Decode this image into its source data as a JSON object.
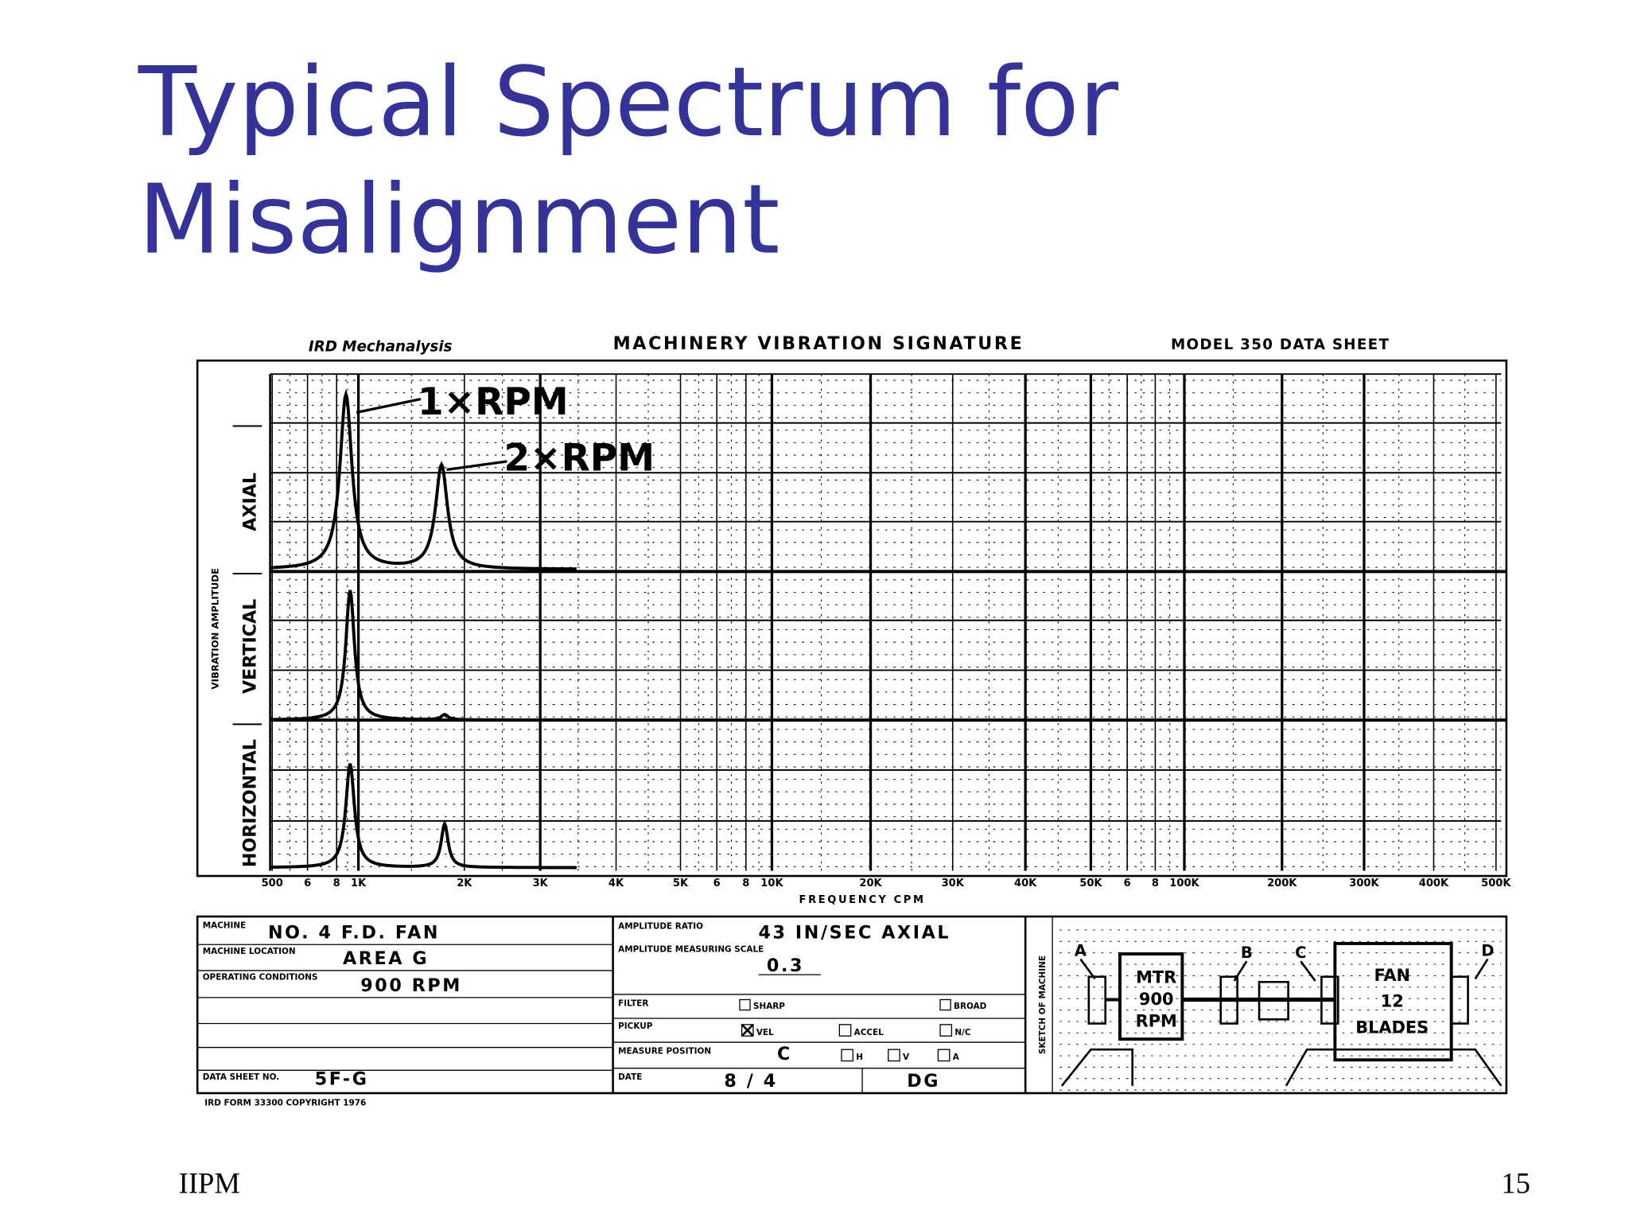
{
  "title": {
    "lines": [
      "Typical Spectrum for",
      "Misalignment"
    ]
  },
  "figure": {
    "header": {
      "brand": "IRD Mechanalysis",
      "title": "MACHINERY VIBRATION SIGNATURE",
      "model": "MODEL 350 DATA SHEET"
    },
    "y_title": "VIBRATION AMPLITUDE",
    "bands": [
      "AXIAL",
      "VERTICAL",
      "HORIZONTAL"
    ],
    "annotations": [
      "1×RPM",
      "2×RPM"
    ],
    "x_labels": [
      "500",
      "6",
      "8",
      "1K",
      "2K",
      "3K",
      "4K",
      "5K",
      "6",
      "8",
      "10K",
      "20K",
      "30K",
      "40K",
      "50K",
      "6",
      "8",
      "100K",
      "200K",
      "300K",
      "400K",
      "500K"
    ],
    "x_title": "FREQUENCY CPM",
    "form_left": [
      {
        "label": "MACHINE",
        "value": "NO. 4 F.D. FAN"
      },
      {
        "label": "MACHINE LOCATION",
        "value": "AREA G"
      },
      {
        "label": "OPERATING CONDITIONS",
        "value": "900 RPM"
      },
      {
        "label": "DATA SHEET NO.",
        "value": "5F-G"
      }
    ],
    "form_mid": {
      "amplitude": {
        "label": "AMPLITUDE RATIO",
        "value": "43 IN/SEC AXIAL"
      },
      "scale": {
        "label": "AMPLITUDE MEASURING SCALE",
        "value": "0.3"
      },
      "filter": {
        "label": "FILTER",
        "options": [
          "SHARP",
          "BROAD"
        ]
      },
      "pickup": {
        "label": "PICKUP",
        "options": [
          "VEL",
          "ACCEL",
          "N/C"
        ]
      },
      "position": {
        "label": "MEASURE POSITION",
        "value": "C",
        "options": [
          "H",
          "V",
          "A"
        ]
      },
      "date": {
        "label": "DATE",
        "value": "8 / 4",
        "signed": "DG"
      }
    },
    "diagram": {
      "side_label": "SKETCH OF MACHINE",
      "points": [
        "A",
        "B",
        "C",
        "D"
      ],
      "motor": [
        "MTR",
        "900",
        "RPM"
      ],
      "fan": [
        "FAN",
        "12",
        "BLADES"
      ]
    },
    "footnote": "IRD FORM 33300 COPYRIGHT 1976"
  },
  "footer": {
    "left": "IIPM",
    "page": "15"
  }
}
